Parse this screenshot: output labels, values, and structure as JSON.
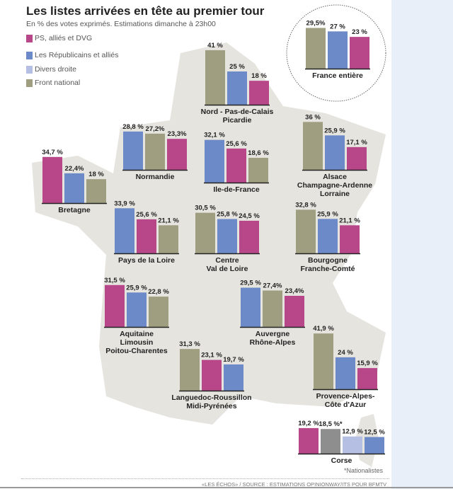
{
  "chart_data": {
    "type": "bar",
    "title": "Les listes arrivées en tête au premier tour",
    "subtitle": "En % des votes exprimés. Estimations dimanche à 23h00",
    "legend": [
      {
        "key": "PS",
        "name": "PS, alliés et DVG",
        "color": "#b8478a"
      },
      {
        "key": "LR",
        "name": "Les Républicains et alliés",
        "color": "#6d8ac8"
      },
      {
        "key": "DVD",
        "name": "Divers droite",
        "color": "#b4bfe3"
      },
      {
        "key": "FN",
        "name": "Front national",
        "color": "#a09e80"
      }
    ],
    "extra_series_colors": {
      "NAT": "#8e8e8e"
    },
    "regions": [
      {
        "name": [
          "France entière"
        ],
        "bars": [
          {
            "s": "FN",
            "v": 29.5,
            "label": "29,5%"
          },
          {
            "s": "LR",
            "v": 27,
            "label": "27 %"
          },
          {
            "s": "PS",
            "v": 23,
            "label": "23 %"
          }
        ]
      },
      {
        "name": [
          "Nord - Pas-de-Calais",
          "Picardie"
        ],
        "bars": [
          {
            "s": "FN",
            "v": 41,
            "label": "41 %"
          },
          {
            "s": "LR",
            "v": 25,
            "label": "25 %"
          },
          {
            "s": "PS",
            "v": 18,
            "label": "18 %"
          }
        ]
      },
      {
        "name": [
          "Normandie"
        ],
        "bars": [
          {
            "s": "LR",
            "v": 28.8,
            "label": "28,8 %"
          },
          {
            "s": "FN",
            "v": 27.2,
            "label": "27,2%"
          },
          {
            "s": "PS",
            "v": 23.3,
            "label": "23,3%"
          }
        ]
      },
      {
        "name": [
          "Ile-de-France"
        ],
        "bars": [
          {
            "s": "LR",
            "v": 32.1,
            "label": "32,1 %"
          },
          {
            "s": "PS",
            "v": 25.6,
            "label": "25,6 %"
          },
          {
            "s": "FN",
            "v": 18.6,
            "label": "18,6 %"
          }
        ]
      },
      {
        "name": [
          "Alsace",
          "Champagne-Ardenne",
          "Lorraine"
        ],
        "bars": [
          {
            "s": "FN",
            "v": 36,
            "label": "36 %"
          },
          {
            "s": "LR",
            "v": 25.9,
            "label": "25,9 %"
          },
          {
            "s": "PS",
            "v": 17.1,
            "label": "17,1 %"
          }
        ]
      },
      {
        "name": [
          "Bretagne"
        ],
        "bars": [
          {
            "s": "PS",
            "v": 34.7,
            "label": "34,7 %"
          },
          {
            "s": "LR",
            "v": 22.4,
            "label": "22,4%"
          },
          {
            "s": "FN",
            "v": 18,
            "label": "18 %"
          }
        ]
      },
      {
        "name": [
          "Pays de la Loire"
        ],
        "bars": [
          {
            "s": "LR",
            "v": 33.9,
            "label": "33,9 %"
          },
          {
            "s": "PS",
            "v": 25.6,
            "label": "25,6 %"
          },
          {
            "s": "FN",
            "v": 21.1,
            "label": "21,1 %"
          }
        ]
      },
      {
        "name": [
          "Centre",
          "Val de Loire"
        ],
        "bars": [
          {
            "s": "FN",
            "v": 30.5,
            "label": "30,5 %"
          },
          {
            "s": "LR",
            "v": 25.8,
            "label": "25,8 %"
          },
          {
            "s": "PS",
            "v": 24.5,
            "label": "24,5 %"
          }
        ]
      },
      {
        "name": [
          "Bourgogne",
          "Franche-Comté"
        ],
        "bars": [
          {
            "s": "FN",
            "v": 32.8,
            "label": "32,8 %"
          },
          {
            "s": "LR",
            "v": 25.9,
            "label": "25,9 %"
          },
          {
            "s": "PS",
            "v": 21.1,
            "label": "21,1 %"
          }
        ]
      },
      {
        "name": [
          "Aquitaine",
          "Limousin",
          "Poitou-Charentes"
        ],
        "bars": [
          {
            "s": "PS",
            "v": 31.5,
            "label": "31,5 %"
          },
          {
            "s": "LR",
            "v": 25.9,
            "label": "25,9 %"
          },
          {
            "s": "FN",
            "v": 22.8,
            "label": "22,8 %"
          }
        ]
      },
      {
        "name": [
          "Auvergne",
          "Rhône-Alpes"
        ],
        "bars": [
          {
            "s": "LR",
            "v": 29.5,
            "label": "29,5 %"
          },
          {
            "s": "FN",
            "v": 27.4,
            "label": "27,4%"
          },
          {
            "s": "PS",
            "v": 23.4,
            "label": "23,4%"
          }
        ]
      },
      {
        "name": [
          "Languedoc-Roussillon",
          "Midi-Pyrénées"
        ],
        "bars": [
          {
            "s": "FN",
            "v": 31.3,
            "label": "31,3 %"
          },
          {
            "s": "PS",
            "v": 23.1,
            "label": "23,1 %"
          },
          {
            "s": "LR",
            "v": 19.7,
            "label": "19,7 %"
          }
        ]
      },
      {
        "name": [
          "Provence-Alpes-",
          "Côte d'Azur"
        ],
        "bars": [
          {
            "s": "FN",
            "v": 41.9,
            "label": "41,9 %"
          },
          {
            "s": "LR",
            "v": 24,
            "label": "24 %"
          },
          {
            "s": "PS",
            "v": 15.9,
            "label": "15,9 %"
          }
        ]
      },
      {
        "name": [
          "Corse"
        ],
        "bars": [
          {
            "s": "PS",
            "v": 19.2,
            "label": "19,2 %"
          },
          {
            "s": "NAT",
            "v": 18.5,
            "label": "18,5 %*"
          },
          {
            "s": "DVD",
            "v": 12.9,
            "label": "12,9 %"
          },
          {
            "s": "LR",
            "v": 12.5,
            "label": "12,5 %"
          }
        ]
      }
    ],
    "footnote": "*Nationalistes",
    "source": "«LES ÉCHOS» / SOURCE : ESTIMATIONS OPINIONWAY/ITS POUR BFMTV"
  }
}
